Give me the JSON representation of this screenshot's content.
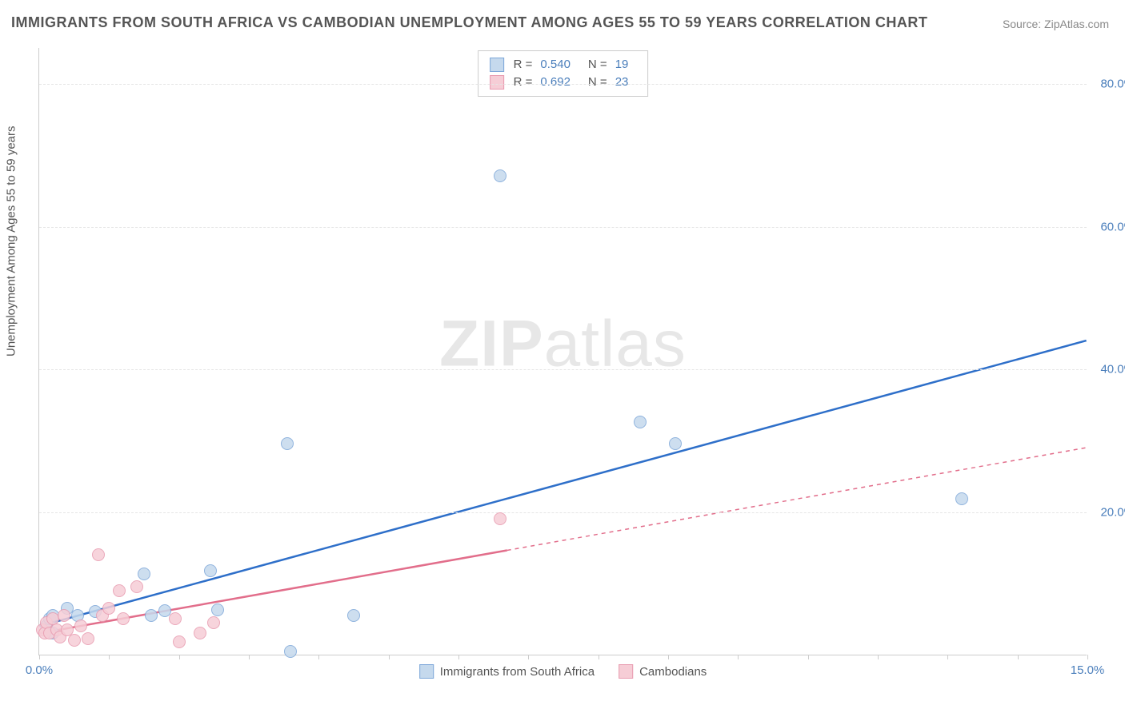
{
  "title": "IMMIGRANTS FROM SOUTH AFRICA VS CAMBODIAN UNEMPLOYMENT AMONG AGES 55 TO 59 YEARS CORRELATION CHART",
  "source": "Source: ZipAtlas.com",
  "watermark_bold": "ZIP",
  "watermark_light": "atlas",
  "chart": {
    "type": "scatter",
    "xlim": [
      0,
      15
    ],
    "ylim": [
      0,
      85
    ],
    "xticks": [
      0,
      1,
      2,
      3,
      4,
      5,
      6,
      7,
      8,
      9,
      10,
      11,
      12,
      13,
      14,
      15
    ],
    "xtick_labels": {
      "0": "0.0%",
      "15": "15.0%"
    },
    "yticks": [
      20,
      40,
      60,
      80
    ],
    "ytick_labels": {
      "20": "20.0%",
      "40": "40.0%",
      "60": "60.0%",
      "80": "80.0%"
    },
    "yaxis_title": "Unemployment Among Ages 55 to 59 years",
    "background_color": "#ffffff",
    "grid_color": "#e5e5e5",
    "axis_label_color": "#4a7ebb",
    "series": [
      {
        "name": "Immigrants from South Africa",
        "fill": "#c5d9ed",
        "stroke": "#7da7d9",
        "line_color": "#2e6fc9",
        "line_width": 2.5,
        "marker_radius": 8,
        "r": "0.540",
        "n": "19",
        "trend": {
          "x1": 0,
          "y1": 4.0,
          "x2": 15,
          "y2": 44.0,
          "solid_until_x": 15
        },
        "points": [
          [
            0.1,
            4.0
          ],
          [
            0.15,
            5.0
          ],
          [
            0.2,
            3.0
          ],
          [
            0.2,
            5.5
          ],
          [
            0.4,
            6.5
          ],
          [
            0.55,
            5.5
          ],
          [
            0.8,
            6.0
          ],
          [
            1.5,
            11.3
          ],
          [
            1.6,
            5.5
          ],
          [
            1.8,
            6.2
          ],
          [
            2.45,
            11.8
          ],
          [
            2.55,
            6.3
          ],
          [
            3.55,
            29.5
          ],
          [
            3.6,
            0.4
          ],
          [
            4.5,
            5.5
          ],
          [
            6.6,
            67.0
          ],
          [
            8.6,
            32.5
          ],
          [
            9.1,
            29.5
          ],
          [
            13.2,
            21.8
          ]
        ]
      },
      {
        "name": "Cambodians",
        "fill": "#f6cdd6",
        "stroke": "#e89bb0",
        "line_color": "#e26e8b",
        "line_width": 2.5,
        "marker_radius": 8,
        "r": "0.692",
        "n": "23",
        "trend": {
          "x1": 0,
          "y1": 3.0,
          "x2": 15,
          "y2": 29.0,
          "solid_until_x": 6.7
        },
        "points": [
          [
            0.05,
            3.5
          ],
          [
            0.08,
            3.0
          ],
          [
            0.1,
            4.5
          ],
          [
            0.15,
            3.0
          ],
          [
            0.2,
            5.0
          ],
          [
            0.25,
            3.5
          ],
          [
            0.3,
            2.5
          ],
          [
            0.35,
            5.5
          ],
          [
            0.4,
            3.5
          ],
          [
            0.5,
            2.0
          ],
          [
            0.6,
            4.0
          ],
          [
            0.7,
            2.2
          ],
          [
            0.85,
            14.0
          ],
          [
            0.9,
            5.5
          ],
          [
            1.0,
            6.5
          ],
          [
            1.15,
            9.0
          ],
          [
            1.2,
            5.0
          ],
          [
            1.4,
            9.5
          ],
          [
            1.95,
            5.0
          ],
          [
            2.0,
            1.8
          ],
          [
            2.3,
            3.0
          ],
          [
            2.5,
            4.5
          ],
          [
            6.6,
            19.0
          ]
        ]
      }
    ],
    "legend_bottom": [
      {
        "label": "Immigrants from South Africa",
        "fill": "#c5d9ed",
        "stroke": "#7da7d9"
      },
      {
        "label": "Cambodians",
        "fill": "#f6cdd6",
        "stroke": "#e89bb0"
      }
    ]
  }
}
